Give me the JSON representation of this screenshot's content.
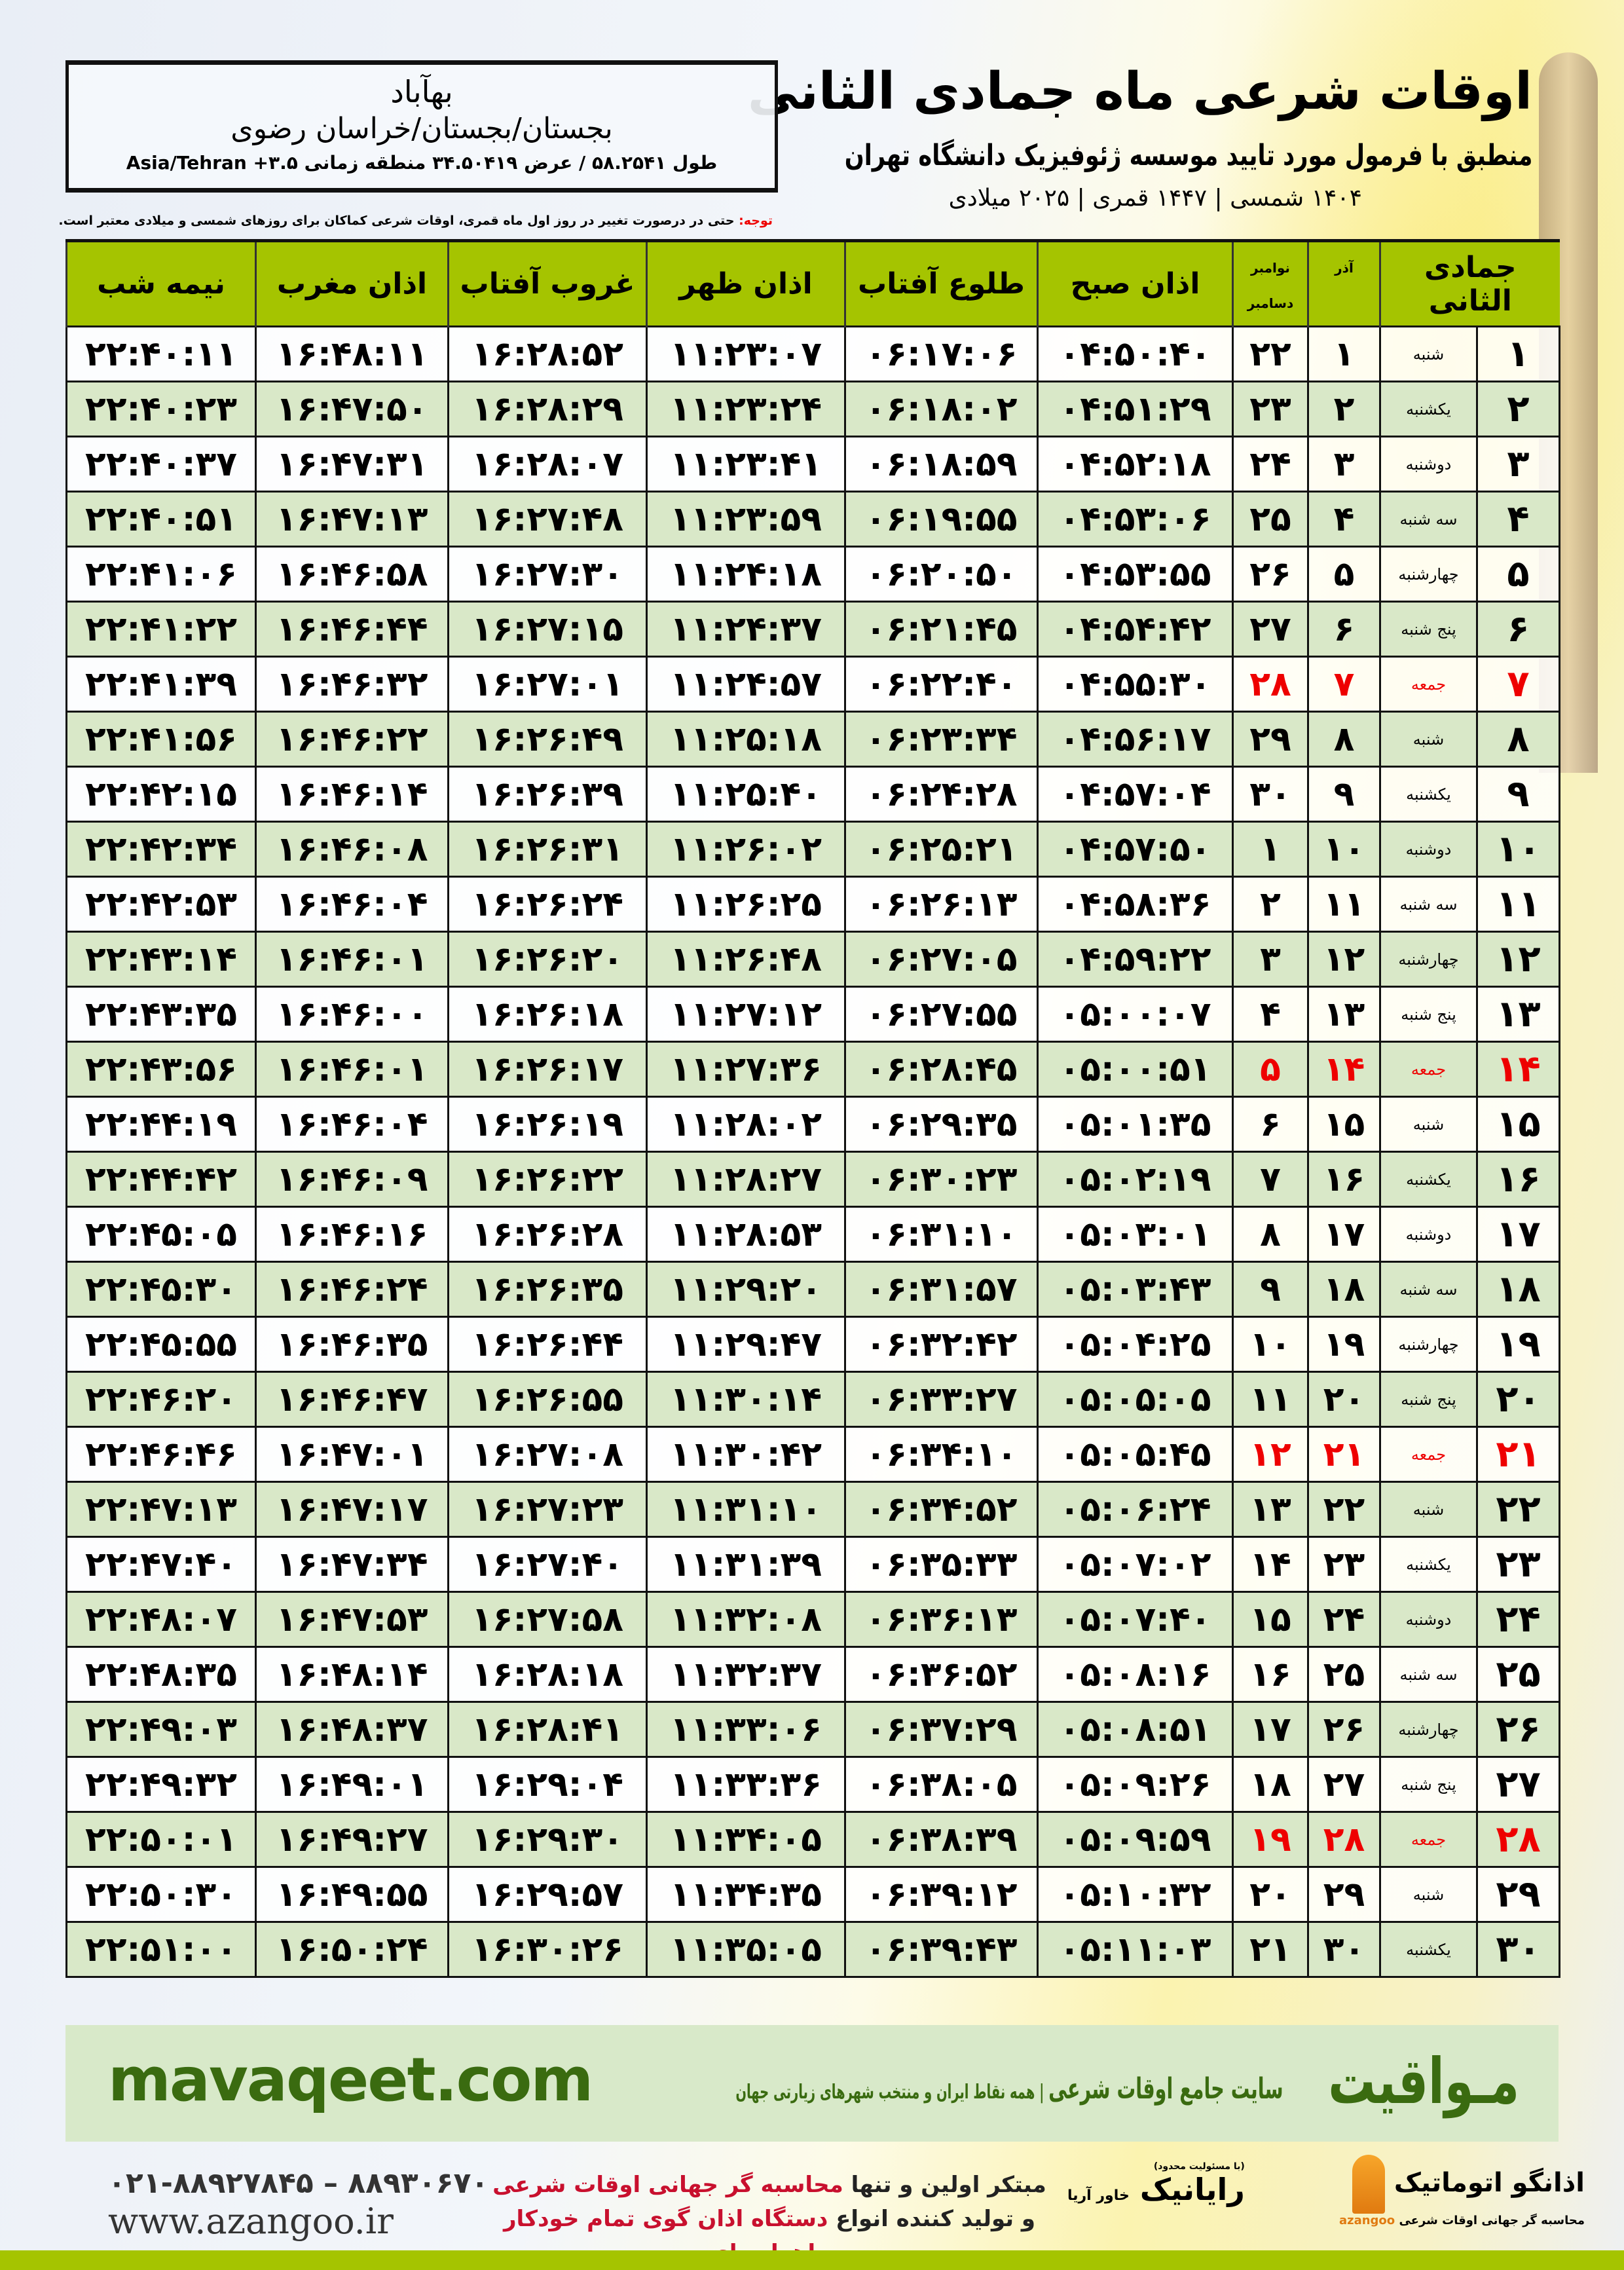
{
  "header": {
    "title": "اوقات شرعی ماه جمادی الثانی",
    "subtitle": "منطبق با فرمول مورد تایید موسسه ژئوفیزیک دانشگاه تهران",
    "years": "۱۴۰۴ شمسی | ۱۴۴۷ قمری | ۲۰۲۵ میلادی"
  },
  "location": {
    "city": "بهآباد",
    "province": "بجستان/بجستان/خراسان رضوی",
    "coords": "طول ۵۸.۲۵۴۱ / عرض ۳۴.۵۰۴۱۹ منطقه زمانی ۳.۵+ Asia/Tehran"
  },
  "note": {
    "label": "توجه:",
    "text": " حتی در درصورت تغییر در روز اول ماه قمری، اوقات شرعی کماکان برای روزهای شمسی و میلادی معتبر است."
  },
  "table": {
    "columns": [
      "جمادی الثانی",
      "",
      "آذر",
      "نوامبر",
      "دسامبر",
      "اذان صبح",
      "طلوع آفتاب",
      "اذان ظهر",
      "غروب آفتاب",
      "اذان مغرب",
      "نیمه شب"
    ],
    "rows": [
      [
        "۱",
        "شنبه",
        "۱",
        "۲۲",
        "۰۴:۵۰:۴۰",
        "۰۶:۱۷:۰۶",
        "۱۱:۲۳:۰۷",
        "۱۶:۲۸:۵۲",
        "۱۶:۴۸:۱۱",
        "۲۲:۴۰:۱۱"
      ],
      [
        "۲",
        "یکشنبه",
        "۲",
        "۲۳",
        "۰۴:۵۱:۲۹",
        "۰۶:۱۸:۰۲",
        "۱۱:۲۳:۲۴",
        "۱۶:۲۸:۲۹",
        "۱۶:۴۷:۵۰",
        "۲۲:۴۰:۲۳"
      ],
      [
        "۳",
        "دوشنبه",
        "۳",
        "۲۴",
        "۰۴:۵۲:۱۸",
        "۰۶:۱۸:۵۹",
        "۱۱:۲۳:۴۱",
        "۱۶:۲۸:۰۷",
        "۱۶:۴۷:۳۱",
        "۲۲:۴۰:۳۷"
      ],
      [
        "۴",
        "سه شنبه",
        "۴",
        "۲۵",
        "۰۴:۵۳:۰۶",
        "۰۶:۱۹:۵۵",
        "۱۱:۲۳:۵۹",
        "۱۶:۲۷:۴۸",
        "۱۶:۴۷:۱۳",
        "۲۲:۴۰:۵۱"
      ],
      [
        "۵",
        "چهارشنبه",
        "۵",
        "۲۶",
        "۰۴:۵۳:۵۵",
        "۰۶:۲۰:۵۰",
        "۱۱:۲۴:۱۸",
        "۱۶:۲۷:۳۰",
        "۱۶:۴۶:۵۸",
        "۲۲:۴۱:۰۶"
      ],
      [
        "۶",
        "پنج شنبه",
        "۶",
        "۲۷",
        "۰۴:۵۴:۴۲",
        "۰۶:۲۱:۴۵",
        "۱۱:۲۴:۳۷",
        "۱۶:۲۷:۱۵",
        "۱۶:۴۶:۴۴",
        "۲۲:۴۱:۲۲"
      ],
      [
        "۷",
        "جمعه",
        "۷",
        "۲۸",
        "۰۴:۵۵:۳۰",
        "۰۶:۲۲:۴۰",
        "۱۱:۲۴:۵۷",
        "۱۶:۲۷:۰۱",
        "۱۶:۴۶:۳۲",
        "۲۲:۴۱:۳۹"
      ],
      [
        "۸",
        "شنبه",
        "۸",
        "۲۹",
        "۰۴:۵۶:۱۷",
        "۰۶:۲۳:۳۴",
        "۱۱:۲۵:۱۸",
        "۱۶:۲۶:۴۹",
        "۱۶:۴۶:۲۲",
        "۲۲:۴۱:۵۶"
      ],
      [
        "۹",
        "یکشنبه",
        "۹",
        "۳۰",
        "۰۴:۵۷:۰۴",
        "۰۶:۲۴:۲۸",
        "۱۱:۲۵:۴۰",
        "۱۶:۲۶:۳۹",
        "۱۶:۴۶:۱۴",
        "۲۲:۴۲:۱۵"
      ],
      [
        "۱۰",
        "دوشنبه",
        "۱۰",
        "۱",
        "۰۴:۵۷:۵۰",
        "۰۶:۲۵:۲۱",
        "۱۱:۲۶:۰۲",
        "۱۶:۲۶:۳۱",
        "۱۶:۴۶:۰۸",
        "۲۲:۴۲:۳۴"
      ],
      [
        "۱۱",
        "سه شنبه",
        "۱۱",
        "۲",
        "۰۴:۵۸:۳۶",
        "۰۶:۲۶:۱۳",
        "۱۱:۲۶:۲۵",
        "۱۶:۲۶:۲۴",
        "۱۶:۴۶:۰۴",
        "۲۲:۴۲:۵۳"
      ],
      [
        "۱۲",
        "چهارشنبه",
        "۱۲",
        "۳",
        "۰۴:۵۹:۲۲",
        "۰۶:۲۷:۰۵",
        "۱۱:۲۶:۴۸",
        "۱۶:۲۶:۲۰",
        "۱۶:۴۶:۰۱",
        "۲۲:۴۳:۱۴"
      ],
      [
        "۱۳",
        "پنج شنبه",
        "۱۳",
        "۴",
        "۰۵:۰۰:۰۷",
        "۰۶:۲۷:۵۵",
        "۱۱:۲۷:۱۲",
        "۱۶:۲۶:۱۸",
        "۱۶:۴۶:۰۰",
        "۲۲:۴۳:۳۵"
      ],
      [
        "۱۴",
        "جمعه",
        "۱۴",
        "۵",
        "۰۵:۰۰:۵۱",
        "۰۶:۲۸:۴۵",
        "۱۱:۲۷:۳۶",
        "۱۶:۲۶:۱۷",
        "۱۶:۴۶:۰۱",
        "۲۲:۴۳:۵۶"
      ],
      [
        "۱۵",
        "شنبه",
        "۱۵",
        "۶",
        "۰۵:۰۱:۳۵",
        "۰۶:۲۹:۳۵",
        "۱۱:۲۸:۰۲",
        "۱۶:۲۶:۱۹",
        "۱۶:۴۶:۰۴",
        "۲۲:۴۴:۱۹"
      ],
      [
        "۱۶",
        "یکشنبه",
        "۱۶",
        "۷",
        "۰۵:۰۲:۱۹",
        "۰۶:۳۰:۲۳",
        "۱۱:۲۸:۲۷",
        "۱۶:۲۶:۲۲",
        "۱۶:۴۶:۰۹",
        "۲۲:۴۴:۴۲"
      ],
      [
        "۱۷",
        "دوشنبه",
        "۱۷",
        "۸",
        "۰۵:۰۳:۰۱",
        "۰۶:۳۱:۱۰",
        "۱۱:۲۸:۵۳",
        "۱۶:۲۶:۲۸",
        "۱۶:۴۶:۱۶",
        "۲۲:۴۵:۰۵"
      ],
      [
        "۱۸",
        "سه شنبه",
        "۱۸",
        "۹",
        "۰۵:۰۳:۴۳",
        "۰۶:۳۱:۵۷",
        "۱۱:۲۹:۲۰",
        "۱۶:۲۶:۳۵",
        "۱۶:۴۶:۲۴",
        "۲۲:۴۵:۳۰"
      ],
      [
        "۱۹",
        "چهارشنبه",
        "۱۹",
        "۱۰",
        "۰۵:۰۴:۲۵",
        "۰۶:۳۲:۴۲",
        "۱۱:۲۹:۴۷",
        "۱۶:۲۶:۴۴",
        "۱۶:۴۶:۳۵",
        "۲۲:۴۵:۵۵"
      ],
      [
        "۲۰",
        "پنج شنبه",
        "۲۰",
        "۱۱",
        "۰۵:۰۵:۰۵",
        "۰۶:۳۳:۲۷",
        "۱۱:۳۰:۱۴",
        "۱۶:۲۶:۵۵",
        "۱۶:۴۶:۴۷",
        "۲۲:۴۶:۲۰"
      ],
      [
        "۲۱",
        "جمعه",
        "۲۱",
        "۱۲",
        "۰۵:۰۵:۴۵",
        "۰۶:۳۴:۱۰",
        "۱۱:۳۰:۴۲",
        "۱۶:۲۷:۰۸",
        "۱۶:۴۷:۰۱",
        "۲۲:۴۶:۴۶"
      ],
      [
        "۲۲",
        "شنبه",
        "۲۲",
        "۱۳",
        "۰۵:۰۶:۲۴",
        "۰۶:۳۴:۵۲",
        "۱۱:۳۱:۱۰",
        "۱۶:۲۷:۲۳",
        "۱۶:۴۷:۱۷",
        "۲۲:۴۷:۱۳"
      ],
      [
        "۲۳",
        "یکشنبه",
        "۲۳",
        "۱۴",
        "۰۵:۰۷:۰۲",
        "۰۶:۳۵:۳۳",
        "۱۱:۳۱:۳۹",
        "۱۶:۲۷:۴۰",
        "۱۶:۴۷:۳۴",
        "۲۲:۴۷:۴۰"
      ],
      [
        "۲۴",
        "دوشنبه",
        "۲۴",
        "۱۵",
        "۰۵:۰۷:۴۰",
        "۰۶:۳۶:۱۳",
        "۱۱:۳۲:۰۸",
        "۱۶:۲۷:۵۸",
        "۱۶:۴۷:۵۳",
        "۲۲:۴۸:۰۷"
      ],
      [
        "۲۵",
        "سه شنبه",
        "۲۵",
        "۱۶",
        "۰۵:۰۸:۱۶",
        "۰۶:۳۶:۵۲",
        "۱۱:۳۲:۳۷",
        "۱۶:۲۸:۱۸",
        "۱۶:۴۸:۱۴",
        "۲۲:۴۸:۳۵"
      ],
      [
        "۲۶",
        "چهارشنبه",
        "۲۶",
        "۱۷",
        "۰۵:۰۸:۵۱",
        "۰۶:۳۷:۲۹",
        "۱۱:۳۳:۰۶",
        "۱۶:۲۸:۴۱",
        "۱۶:۴۸:۳۷",
        "۲۲:۴۹:۰۳"
      ],
      [
        "۲۷",
        "پنج شنبه",
        "۲۷",
        "۱۸",
        "۰۵:۰۹:۲۶",
        "۰۶:۳۸:۰۵",
        "۱۱:۳۳:۳۶",
        "۱۶:۲۹:۰۴",
        "۱۶:۴۹:۰۱",
        "۲۲:۴۹:۳۲"
      ],
      [
        "۲۸",
        "جمعه",
        "۲۸",
        "۱۹",
        "۰۵:۰۹:۵۹",
        "۰۶:۳۸:۳۹",
        "۱۱:۳۴:۰۵",
        "۱۶:۲۹:۳۰",
        "۱۶:۴۹:۲۷",
        "۲۲:۵۰:۰۱"
      ],
      [
        "۲۹",
        "شنبه",
        "۲۹",
        "۲۰",
        "۰۵:۱۰:۳۲",
        "۰۶:۳۹:۱۲",
        "۱۱:۳۴:۳۵",
        "۱۶:۲۹:۵۷",
        "۱۶:۴۹:۵۵",
        "۲۲:۵۰:۳۰"
      ],
      [
        "۳۰",
        "یکشنبه",
        "۳۰",
        "۲۱",
        "۰۵:۱۱:۰۳",
        "۰۶:۳۹:۴۳",
        "۱۱:۳۵:۰۵",
        "۱۶:۳۰:۲۶",
        "۱۶:۵۰:۲۴",
        "۲۲:۵۱:۰۰"
      ]
    ],
    "friday_label": "جمعه"
  },
  "banner": {
    "brand": "مـواقیت",
    "slogan_main": "سایت جامع اوقات شرعی",
    "slogan_sub": "همه نقاط ایران و منتخب شهرهای زیارتی جهان",
    "site": "mavaqeet.com"
  },
  "footer": {
    "phones": "۰۲۱-۸۸۹۲۷۸۴۵ – ۸۸۹۳۰۶۷۰",
    "web": "www.azangoo.ir",
    "promo_line1_a": "مبتکر اولین و تنها ",
    "promo_line1_b": "محاسبه گر جهانی اوقات شرعی",
    "promo_line2_a": "و تولید کننده انواع ",
    "promo_line2_b": "دستگاه اذان گوی تمام خودکار ماهواره ای",
    "logo_rayanik": "رایانیک",
    "logo_rayanik_sub": "خاور آریا",
    "logo_rayanik_top": "(با مسئولیت محدود)",
    "logo_azangoo": "اذانگو اتوماتیک",
    "logo_azangoo_sub": "محاسبه گر جهانی اوقات شرعی",
    "logo_azangoo_en": "azangoo"
  },
  "colors": {
    "header_green": "#a5c400",
    "alt_row": "#d9e8c8",
    "friday": "#e00000",
    "brand_green": "#3a6b10",
    "promo_red": "#c8102e"
  }
}
